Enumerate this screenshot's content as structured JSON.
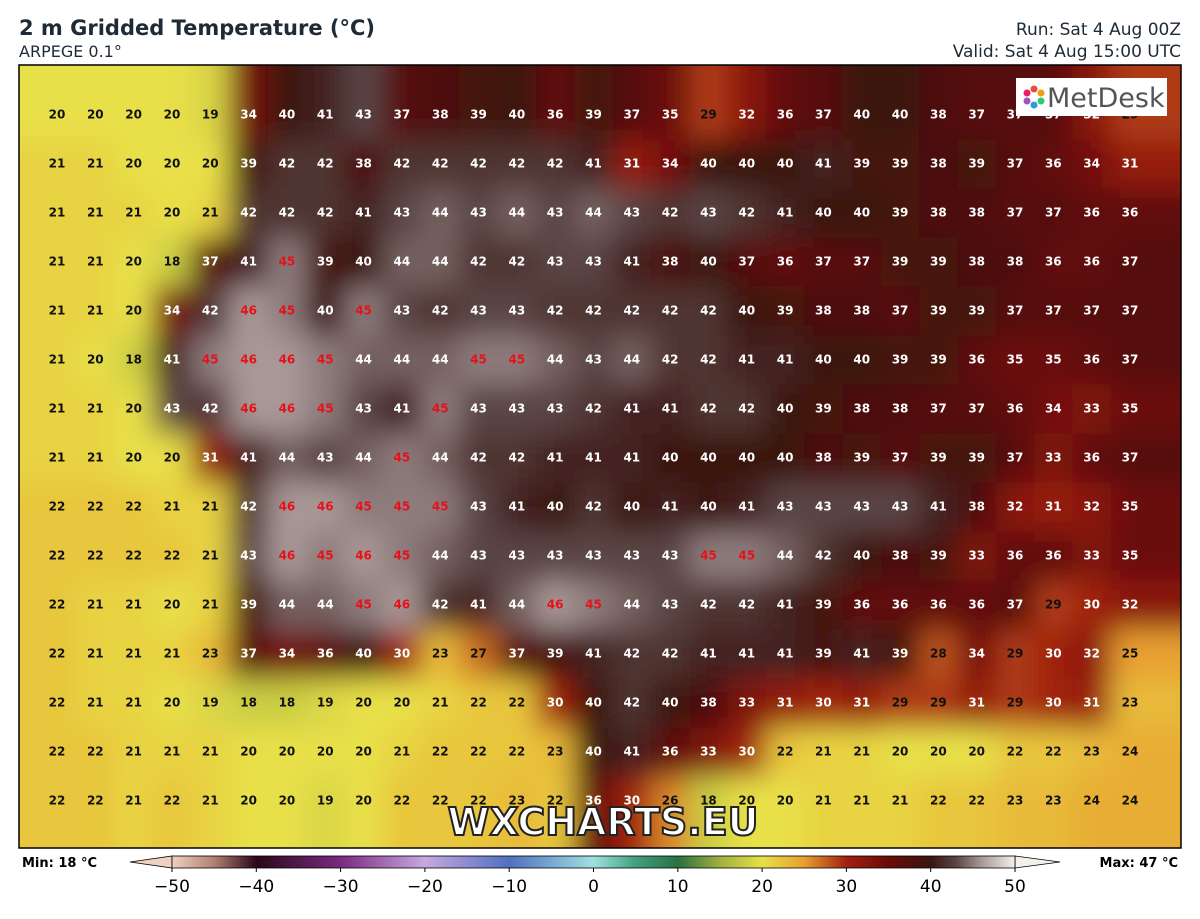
{
  "header": {
    "title": "2 m Gridded Temperature (°C)",
    "subtitle": "ARPEGE 0.1°",
    "run": "Run: Sat 4 Aug 00Z",
    "valid": "Valid: Sat 4 Aug 15:00 UTC"
  },
  "logo": "MetDesk",
  "watermark": "WXCHARTS.EU",
  "map": {
    "rows": [
      [
        20,
        20,
        20,
        20,
        19,
        34,
        40,
        41,
        43,
        37,
        38,
        39,
        40,
        36,
        39,
        37,
        35,
        29,
        32,
        36,
        37,
        40,
        40,
        38,
        37,
        37,
        37,
        32,
        29
      ],
      [
        21,
        21,
        20,
        20,
        20,
        39,
        42,
        42,
        38,
        42,
        42,
        42,
        42,
        42,
        41,
        31,
        34,
        40,
        40,
        40,
        41,
        39,
        39,
        38,
        39,
        37,
        36,
        34,
        31
      ],
      [
        21,
        21,
        21,
        20,
        21,
        42,
        42,
        42,
        41,
        43,
        44,
        43,
        44,
        43,
        44,
        43,
        42,
        43,
        42,
        41,
        40,
        40,
        39,
        38,
        38,
        37,
        37,
        36,
        36
      ],
      [
        21,
        21,
        20,
        18,
        37,
        41,
        45,
        39,
        40,
        44,
        44,
        42,
        42,
        43,
        43,
        41,
        38,
        40,
        37,
        36,
        37,
        37,
        39,
        39,
        38,
        38,
        36,
        36,
        37
      ],
      [
        21,
        21,
        20,
        34,
        42,
        46,
        45,
        40,
        45,
        43,
        42,
        43,
        43,
        42,
        42,
        42,
        42,
        42,
        40,
        39,
        38,
        38,
        37,
        39,
        39,
        37,
        37,
        37,
        37
      ],
      [
        21,
        20,
        18,
        41,
        45,
        46,
        46,
        45,
        44,
        44,
        44,
        45,
        45,
        44,
        43,
        44,
        42,
        42,
        41,
        41,
        40,
        40,
        39,
        39,
        36,
        35,
        35,
        36,
        37
      ],
      [
        21,
        21,
        20,
        43,
        42,
        46,
        46,
        45,
        43,
        41,
        45,
        43,
        43,
        43,
        42,
        41,
        41,
        42,
        42,
        40,
        39,
        38,
        38,
        37,
        37,
        36,
        34,
        33,
        35
      ],
      [
        21,
        21,
        20,
        20,
        31,
        41,
        44,
        43,
        44,
        45,
        44,
        42,
        42,
        41,
        41,
        41,
        40,
        40,
        40,
        40,
        38,
        39,
        37,
        39,
        39,
        37,
        33,
        36,
        37
      ],
      [
        22,
        22,
        22,
        21,
        21,
        42,
        46,
        46,
        45,
        45,
        45,
        43,
        41,
        40,
        42,
        40,
        41,
        40,
        41,
        43,
        43,
        43,
        43,
        41,
        38,
        32,
        31,
        32,
        35
      ],
      [
        22,
        22,
        22,
        22,
        21,
        43,
        46,
        45,
        46,
        45,
        44,
        43,
        43,
        43,
        43,
        43,
        43,
        45,
        45,
        44,
        42,
        40,
        38,
        39,
        33,
        36,
        36,
        33,
        35
      ],
      [
        22,
        21,
        21,
        20,
        21,
        39,
        44,
        44,
        45,
        46,
        42,
        41,
        44,
        46,
        45,
        44,
        43,
        42,
        42,
        41,
        39,
        36,
        36,
        36,
        36,
        37,
        29,
        30,
        32
      ],
      [
        22,
        21,
        21,
        21,
        23,
        37,
        34,
        36,
        40,
        30,
        23,
        27,
        37,
        39,
        41,
        42,
        42,
        41,
        41,
        41,
        39,
        41,
        39,
        28,
        34,
        29,
        30,
        32,
        25
      ],
      [
        22,
        21,
        21,
        20,
        19,
        18,
        18,
        19,
        20,
        20,
        21,
        22,
        22,
        30,
        40,
        42,
        40,
        38,
        33,
        31,
        30,
        31,
        29,
        29,
        31,
        29,
        30,
        31,
        23
      ],
      [
        22,
        22,
        21,
        21,
        21,
        20,
        20,
        20,
        20,
        21,
        22,
        22,
        22,
        23,
        40,
        41,
        36,
        33,
        30,
        22,
        21,
        21,
        20,
        20,
        20,
        22,
        22,
        23,
        24
      ],
      [
        22,
        22,
        21,
        22,
        21,
        20,
        20,
        19,
        20,
        22,
        22,
        22,
        23,
        22,
        36,
        30,
        26,
        18,
        20,
        20,
        21,
        21,
        21,
        22,
        22,
        23,
        23,
        24,
        24
      ]
    ]
  },
  "colorbar": {
    "range": [
      -50,
      50
    ],
    "ticks": [
      {
        "value": -50,
        "label": "−50"
      },
      {
        "value": -40,
        "label": "−40"
      },
      {
        "value": -30,
        "label": "−30"
      },
      {
        "value": -20,
        "label": "−20"
      },
      {
        "value": -10,
        "label": "−10"
      },
      0,
      10,
      20,
      30,
      40,
      50
    ],
    "min_label": "Min: 18 °C",
    "max_label": "Max: 47 °C"
  }
}
